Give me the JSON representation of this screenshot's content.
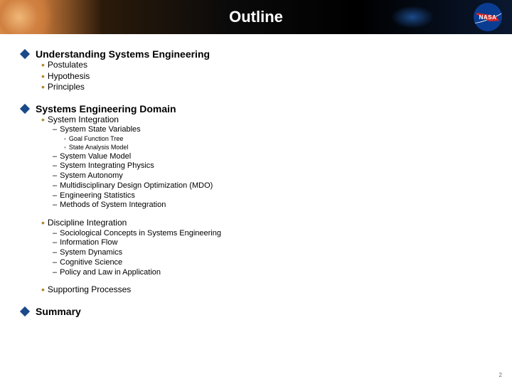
{
  "header": {
    "title": "Outline",
    "logo_text": "NASA",
    "colors": {
      "gradient_start": "#e8a05a",
      "gradient_mid": "#000000",
      "gradient_end": "#0a1830",
      "logo_bg": "#0a3d91",
      "logo_swoosh": "#d62828"
    }
  },
  "bullets": {
    "level1_color": "#1a4a8a",
    "level2_color": "#b08830"
  },
  "outline": {
    "sections": [
      {
        "title": "Understanding Systems Engineering",
        "items": [
          {
            "text": "Postulates"
          },
          {
            "text": "Hypothesis"
          },
          {
            "text": "Principles"
          }
        ]
      },
      {
        "title": "Systems Engineering Domain",
        "items": [
          {
            "text": "System Integration",
            "sub": [
              {
                "text": "System State Variables",
                "subsub": [
                  {
                    "text": "Goal Function Tree"
                  },
                  {
                    "text": "State Analysis Model"
                  }
                ]
              },
              {
                "text": "System Value Model"
              },
              {
                "text": "System Integrating Physics"
              },
              {
                "text": "System Autonomy"
              },
              {
                "text": "Multidisciplinary Design Optimization (MDO)"
              },
              {
                "text": "Engineering Statistics"
              },
              {
                "text": "Methods of System Integration"
              }
            ]
          },
          {
            "text": "Discipline Integration",
            "sub": [
              {
                "text": "Sociological Concepts in Systems Engineering"
              },
              {
                "text": "Information Flow"
              },
              {
                "text": "System Dynamics"
              },
              {
                "text": "Cognitive Science"
              },
              {
                "text": "Policy and Law in Application"
              }
            ]
          },
          {
            "text": "Supporting Processes"
          }
        ]
      },
      {
        "title": "Summary",
        "items": []
      }
    ]
  },
  "page_number": "2",
  "typography": {
    "title_fontsize": 22,
    "level1_fontsize": 14,
    "level2_fontsize": 12,
    "level3_fontsize": 11,
    "level4_fontsize": 9
  }
}
